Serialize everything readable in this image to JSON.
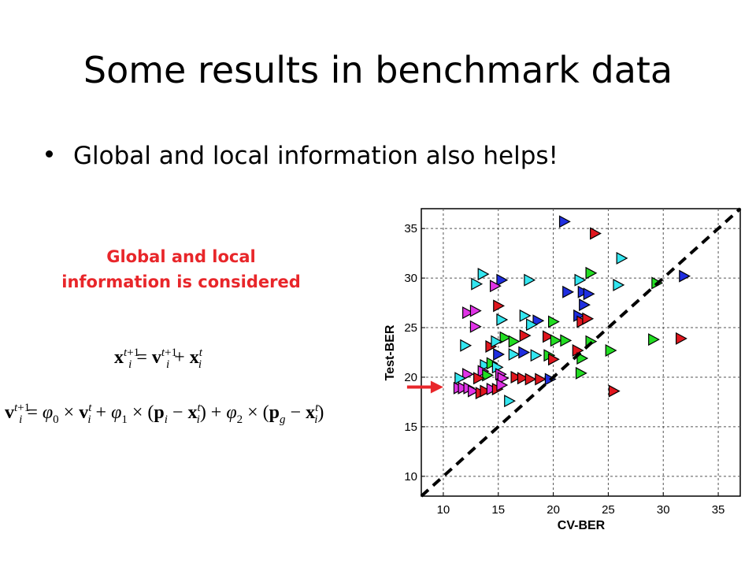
{
  "slide": {
    "title": "Some results in benchmark data",
    "bullet": "Global and local information also helps!",
    "callout_line1": "Global and local",
    "callout_line2": "information is considered",
    "callout_color": "#e8262a"
  },
  "equations": {
    "position_update": "x^{t+1}_i = v^{t+1}_i + x^t_i",
    "velocity_update": "v^{t+1}_i = φ0 × v^t_i + φ1 × (p_i − x^t_i) + φ2 × (p_g − x^t_i)"
  },
  "chart_data": {
    "type": "scatter",
    "xlabel": "CV-BER",
    "ylabel": "Test-BER",
    "xlim": [
      8,
      37
    ],
    "ylim": [
      8,
      37
    ],
    "xticks": [
      10,
      15,
      20,
      25,
      30,
      35
    ],
    "yticks": [
      10,
      15,
      20,
      25,
      30,
      35
    ],
    "grid": true,
    "reference_line": {
      "style": "dashed",
      "color": "#000000",
      "from": [
        8,
        8
      ],
      "to": [
        37,
        37
      ]
    },
    "arrow": {
      "color": "#e8262a",
      "points_to": [
        11,
        19
      ]
    },
    "marker": "triangle-right",
    "colors": {
      "blue": "#1f2ee0",
      "red": "#e0161e",
      "green": "#22dd22",
      "cyan": "#33e6f0",
      "magenta": "#e033e6"
    },
    "points": [
      {
        "x": 21,
        "y": 35.7,
        "c": "blue"
      },
      {
        "x": 23.8,
        "y": 34.5,
        "c": "red"
      },
      {
        "x": 26.2,
        "y": 32,
        "c": "cyan"
      },
      {
        "x": 13.6,
        "y": 30.4,
        "c": "cyan"
      },
      {
        "x": 15.3,
        "y": 29.8,
        "c": "blue"
      },
      {
        "x": 17.8,
        "y": 29.8,
        "c": "cyan"
      },
      {
        "x": 13,
        "y": 29.4,
        "c": "cyan"
      },
      {
        "x": 14.7,
        "y": 29.2,
        "c": "magenta"
      },
      {
        "x": 23.4,
        "y": 30.5,
        "c": "green"
      },
      {
        "x": 22.4,
        "y": 29.8,
        "c": "cyan"
      },
      {
        "x": 25.9,
        "y": 29.3,
        "c": "cyan"
      },
      {
        "x": 29.4,
        "y": 29.5,
        "c": "green"
      },
      {
        "x": 31.9,
        "y": 30.2,
        "c": "blue"
      },
      {
        "x": 21.3,
        "y": 28.6,
        "c": "blue"
      },
      {
        "x": 22.7,
        "y": 28.6,
        "c": "blue"
      },
      {
        "x": 23.2,
        "y": 28.4,
        "c": "blue"
      },
      {
        "x": 22.8,
        "y": 27.3,
        "c": "blue"
      },
      {
        "x": 15,
        "y": 27.2,
        "c": "red"
      },
      {
        "x": 12.2,
        "y": 26.5,
        "c": "magenta"
      },
      {
        "x": 12.9,
        "y": 26.7,
        "c": "magenta"
      },
      {
        "x": 17.4,
        "y": 26.2,
        "c": "cyan"
      },
      {
        "x": 18.6,
        "y": 25.7,
        "c": "blue"
      },
      {
        "x": 15.3,
        "y": 25.8,
        "c": "cyan"
      },
      {
        "x": 18,
        "y": 25.3,
        "c": "cyan"
      },
      {
        "x": 20,
        "y": 25.6,
        "c": "green"
      },
      {
        "x": 22.3,
        "y": 26.2,
        "c": "blue"
      },
      {
        "x": 22.6,
        "y": 25.6,
        "c": "red"
      },
      {
        "x": 23.1,
        "y": 25.9,
        "c": "red"
      },
      {
        "x": 12.9,
        "y": 25.1,
        "c": "magenta"
      },
      {
        "x": 15.6,
        "y": 24,
        "c": "green"
      },
      {
        "x": 16.4,
        "y": 23.6,
        "c": "green"
      },
      {
        "x": 17.4,
        "y": 24.2,
        "c": "red"
      },
      {
        "x": 19.5,
        "y": 24.1,
        "c": "red"
      },
      {
        "x": 20.2,
        "y": 23.7,
        "c": "green"
      },
      {
        "x": 21.1,
        "y": 23.7,
        "c": "green"
      },
      {
        "x": 22.2,
        "y": 22.7,
        "c": "red"
      },
      {
        "x": 23.4,
        "y": 23.6,
        "c": "green"
      },
      {
        "x": 25.2,
        "y": 22.7,
        "c": "green"
      },
      {
        "x": 29.1,
        "y": 23.8,
        "c": "green"
      },
      {
        "x": 31.6,
        "y": 23.9,
        "c": "red"
      },
      {
        "x": 12,
        "y": 23.2,
        "c": "cyan"
      },
      {
        "x": 14.3,
        "y": 23.1,
        "c": "red"
      },
      {
        "x": 14.8,
        "y": 23.6,
        "c": "cyan"
      },
      {
        "x": 15,
        "y": 22.3,
        "c": "blue"
      },
      {
        "x": 16.4,
        "y": 22.3,
        "c": "cyan"
      },
      {
        "x": 17.3,
        "y": 22.5,
        "c": "blue"
      },
      {
        "x": 18.4,
        "y": 22.2,
        "c": "cyan"
      },
      {
        "x": 19.6,
        "y": 22.2,
        "c": "green"
      },
      {
        "x": 20,
        "y": 21.8,
        "c": "red"
      },
      {
        "x": 22.6,
        "y": 21.9,
        "c": "green"
      },
      {
        "x": 13.8,
        "y": 21.2,
        "c": "cyan"
      },
      {
        "x": 14.4,
        "y": 21.4,
        "c": "green"
      },
      {
        "x": 13.6,
        "y": 20.6,
        "c": "magenta"
      },
      {
        "x": 12.2,
        "y": 20.3,
        "c": "magenta"
      },
      {
        "x": 14.9,
        "y": 21,
        "c": "cyan"
      },
      {
        "x": 15.2,
        "y": 20.3,
        "c": "magenta"
      },
      {
        "x": 14,
        "y": 20.2,
        "c": "green"
      },
      {
        "x": 11.5,
        "y": 19.9,
        "c": "cyan"
      },
      {
        "x": 13.2,
        "y": 19.9,
        "c": "red"
      },
      {
        "x": 15.4,
        "y": 19.9,
        "c": "magenta"
      },
      {
        "x": 16.6,
        "y": 20,
        "c": "red"
      },
      {
        "x": 17.2,
        "y": 19.9,
        "c": "red"
      },
      {
        "x": 17.9,
        "y": 19.8,
        "c": "red"
      },
      {
        "x": 18.8,
        "y": 19.8,
        "c": "red"
      },
      {
        "x": 19.7,
        "y": 19.8,
        "c": "blue"
      },
      {
        "x": 22.5,
        "y": 20.4,
        "c": "green"
      },
      {
        "x": 11.4,
        "y": 18.9,
        "c": "magenta"
      },
      {
        "x": 11.8,
        "y": 18.9,
        "c": "magenta"
      },
      {
        "x": 12.3,
        "y": 18.9,
        "c": "magenta"
      },
      {
        "x": 12.7,
        "y": 18.6,
        "c": "magenta"
      },
      {
        "x": 13.4,
        "y": 18.4,
        "c": "red"
      },
      {
        "x": 13.8,
        "y": 18.6,
        "c": "red"
      },
      {
        "x": 14.4,
        "y": 18.8,
        "c": "magenta"
      },
      {
        "x": 14.9,
        "y": 18.8,
        "c": "red"
      },
      {
        "x": 15.3,
        "y": 19.2,
        "c": "magenta"
      },
      {
        "x": 16,
        "y": 17.6,
        "c": "cyan"
      },
      {
        "x": 25.5,
        "y": 18.6,
        "c": "red"
      }
    ]
  }
}
